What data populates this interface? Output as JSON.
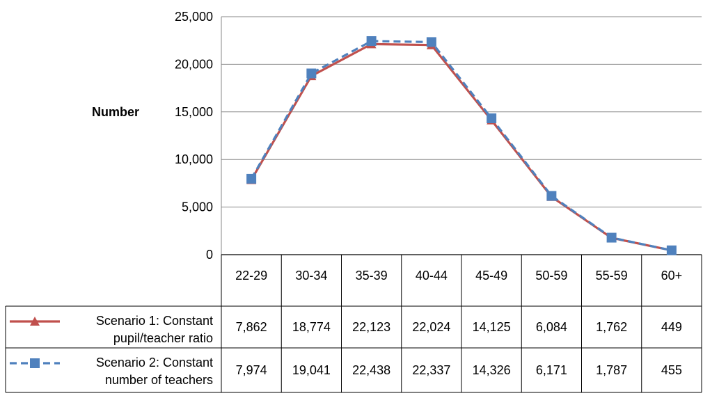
{
  "chart_data": {
    "type": "line",
    "ylabel": "Number",
    "xlabel": "",
    "title": "",
    "ylim": [
      0,
      25000
    ],
    "yticks": [
      0,
      5000,
      10000,
      15000,
      20000,
      25000
    ],
    "ytick_labels": [
      "0",
      "5,000",
      "10,000",
      "15,000",
      "20,000",
      "25,000"
    ],
    "grid": true,
    "legend": "data-table-left",
    "categories": [
      "22-29",
      "30-34",
      "35-39",
      "40-44",
      "45-49",
      "50-59",
      "55-59",
      "60+"
    ],
    "series": [
      {
        "name_line1": "Scenario 1: Constant",
        "name_line2": "pupil/teacher ratio",
        "color": "#c0504d",
        "marker": "triangle",
        "dash": "solid",
        "values": [
          7862,
          18774,
          22123,
          22024,
          14125,
          6084,
          1762,
          449
        ],
        "labels": [
          "7,862",
          "18,774",
          "22,123",
          "22,024",
          "14,125",
          "6,084",
          "1,762",
          "449"
        ]
      },
      {
        "name_line1": "Scenario 2: Constant",
        "name_line2": "number of teachers",
        "color": "#4f81bd",
        "marker": "square",
        "dash": "dashed",
        "values": [
          7974,
          19041,
          22438,
          22337,
          14326,
          6171,
          1787,
          455
        ],
        "labels": [
          "7,974",
          "19,041",
          "22,438",
          "22,337",
          "14,326",
          "6,171",
          "1,787",
          "455"
        ]
      }
    ]
  }
}
